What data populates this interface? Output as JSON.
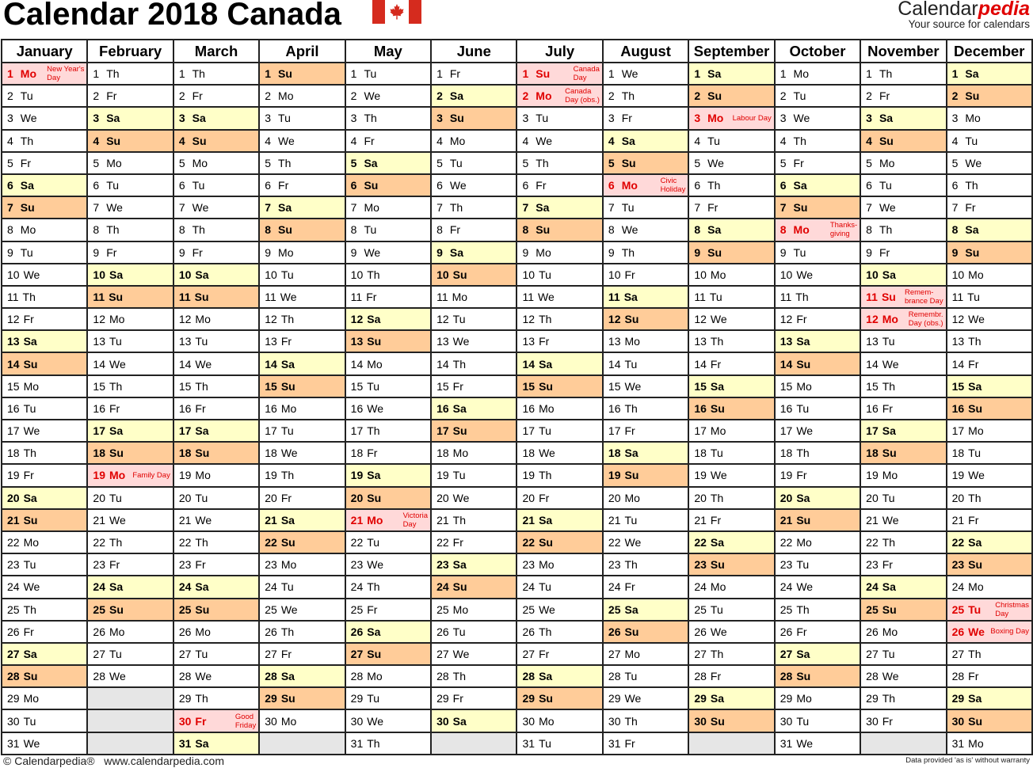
{
  "header": {
    "title": "Calendar 2018 Canada",
    "flag_icon": "canada-flag-icon",
    "brand_name_1": "Calendar",
    "brand_name_2": "pedia",
    "brand_tagline": "Your source for calendars"
  },
  "colors": {
    "saturday_bg": "#FFFFC8",
    "sunday_bg": "#FFCC99",
    "holiday_bg": "#FFD9D9",
    "holiday_text": "#E00000",
    "empty_bg": "#E6E6E6",
    "flag_red": "#D52B1E"
  },
  "calendar": {
    "year": 2018,
    "weekday_abbr": [
      "Su",
      "Mo",
      "Tu",
      "We",
      "Th",
      "Fr",
      "Sa"
    ],
    "months": [
      "January",
      "February",
      "March",
      "April",
      "May",
      "June",
      "July",
      "August",
      "September",
      "October",
      "November",
      "December"
    ],
    "holidays": [
      {
        "month": 1,
        "day": 1,
        "name": "New Year's\nDay"
      },
      {
        "month": 2,
        "day": 19,
        "name": "Family Day"
      },
      {
        "month": 3,
        "day": 30,
        "name": "Good\nFriday"
      },
      {
        "month": 5,
        "day": 21,
        "name": "Victoria\nDay"
      },
      {
        "month": 7,
        "day": 1,
        "name": "Canada\nDay"
      },
      {
        "month": 7,
        "day": 2,
        "name": "Canada\nDay (obs.)"
      },
      {
        "month": 8,
        "day": 6,
        "name": "Civic\nHoliday"
      },
      {
        "month": 9,
        "day": 3,
        "name": "Labour Day"
      },
      {
        "month": 10,
        "day": 8,
        "name": "Thanks-\ngiving"
      },
      {
        "month": 11,
        "day": 11,
        "name": "Remem-\nbrance Day"
      },
      {
        "month": 11,
        "day": 12,
        "name": "Remembr.\nDay (obs.)"
      },
      {
        "month": 12,
        "day": 25,
        "name": "Christmas\nDay"
      },
      {
        "month": 12,
        "day": 26,
        "name": "Boxing Day"
      }
    ]
  },
  "footer": {
    "copyright": "© Calendarpedia®   www.calendarpedia.com",
    "disclaimer": "Data provided 'as is' without warranty"
  }
}
